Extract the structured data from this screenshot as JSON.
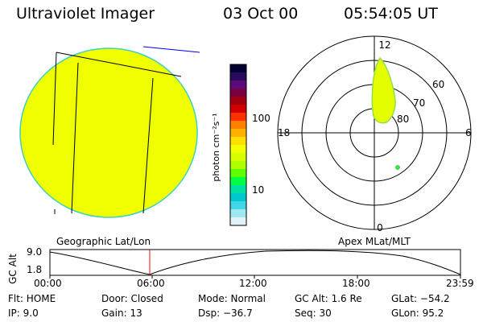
{
  "header": {
    "instrument": "Ultraviolet Imager",
    "date": "03 Oct 00",
    "time": "05:54:05 UT"
  },
  "colorbar": {
    "unit_label": "photon cm⁻²s⁻¹",
    "ticks": [
      "100",
      "10"
    ],
    "colors": [
      "#000033",
      "#2a0a5a",
      "#5a0a7a",
      "#7a0040",
      "#a00010",
      "#d00000",
      "#ff3000",
      "#ff8000",
      "#ffb000",
      "#ffe000",
      "#f4ff00",
      "#d8ff00",
      "#b0ff00",
      "#60ff00",
      "#00ff40",
      "#00e0a0",
      "#00c8d0",
      "#40d8e8",
      "#a0e8f0",
      "#e0f4f8"
    ]
  },
  "polar_plot": {
    "labels": {
      "top": "12",
      "bottom": "0",
      "left": "18",
      "right": "6"
    },
    "lat_labels": [
      "60",
      "70",
      "80"
    ]
  },
  "footer_labels": {
    "left": "Geographic Lat/Lon",
    "right": "Apex MLat/MLT"
  },
  "altitude_plot": {
    "axis_label": "GC Alt",
    "y_ticks": [
      "9.0",
      "1.8"
    ],
    "x_ticks": [
      "00:00",
      "06:00",
      "12:00",
      "18:00",
      "23:59"
    ]
  },
  "info": {
    "flt": "Flt: HOME",
    "ip": "IP:  9.0",
    "door": "Door: Closed",
    "gain": "Gain: 13",
    "mode": "Mode: Normal",
    "dsp": "Dsp:  −36.7",
    "gcalt": "GC Alt: 1.6 Re",
    "seq": "Seq: 30",
    "glat": "GLat:  −54.2",
    "glon": "GLon:  95.2"
  },
  "colors": {
    "image_fill": "#f0ff00",
    "limb": "#40d0c0",
    "aurora": "#e6ff00",
    "marker": "#ff0000",
    "blue_line": "#0000ff"
  }
}
